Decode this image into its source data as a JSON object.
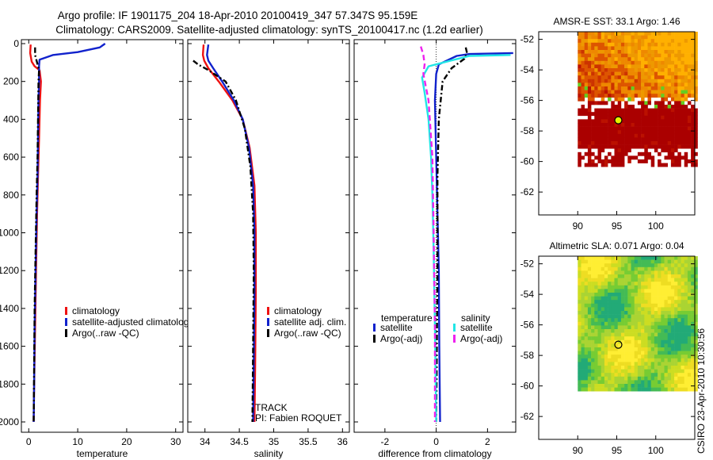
{
  "title": {
    "line1": "Argo profile: IF 1901175_204 18-Apr-2010 20100419_347 57.347S 95.159E",
    "line2": "Climatology: CARS2009. Satellite-adjusted climatology: synTS_20100417.nc (1.2d earlier)"
  },
  "side_label": "CSIRO 23-Apr-2010 10:30:56",
  "colors": {
    "climatology": "#ee1111",
    "satellite": "#1122cc",
    "argo": "#000000",
    "sal_satellite": "#22e6e6",
    "sal_argo": "#ee22ee"
  },
  "chart_data": [
    {
      "id": "temperature",
      "type": "line",
      "xlabel": "temperature",
      "xlim": [
        -1.5,
        31.5
      ],
      "ylim": [
        0,
        2050
      ],
      "y_reversed": true,
      "xticks": [
        0,
        10,
        20,
        30
      ],
      "xtick_labels": [
        "0",
        "10",
        "20",
        "30"
      ],
      "yticks": [
        0,
        200,
        400,
        600,
        800,
        1000,
        1200,
        1400,
        1600,
        1800,
        2000
      ],
      "ytick_labels": [
        "0",
        "200",
        "400",
        "600",
        "800",
        "1000",
        "1200",
        "1400",
        "1600",
        "1800",
        "2000"
      ],
      "series": [
        {
          "name": "climatology",
          "color": "#ee1111",
          "style": "solid",
          "x": [
            0.4,
            0.3,
            0.6,
            1.2,
            2.2,
            2.5,
            2.3,
            2.1,
            1.9,
            1.7,
            1.5,
            1.3,
            1.1,
            1.0
          ],
          "y": [
            5,
            50,
            95,
            120,
            140,
            200,
            300,
            500,
            700,
            900,
            1200,
            1500,
            1800,
            2000
          ]
        },
        {
          "name": "satellite-adjusted climatology",
          "color": "#1122cc",
          "style": "solid",
          "x": [
            15.6,
            14.5,
            10.0,
            5.0,
            2.2,
            2.1,
            2.1,
            2.0,
            1.9,
            1.8,
            1.6,
            1.4,
            1.2,
            1.1,
            1.0
          ],
          "y": [
            0,
            20,
            45,
            60,
            85,
            120,
            200,
            300,
            500,
            700,
            900,
            1200,
            1500,
            1800,
            2000
          ]
        },
        {
          "name": "Argo(..raw -QC)",
          "color": "#000000",
          "style": "dashdot",
          "x": [
            1.3,
            1.3,
            1.7,
            2.1,
            2.0,
            1.9,
            1.8,
            1.6,
            1.4,
            1.2,
            1.1,
            1.0
          ],
          "y": [
            20,
            60,
            100,
            140,
            200,
            400,
            600,
            800,
            1100,
            1400,
            1700,
            2000
          ]
        }
      ],
      "legend": [
        {
          "label": "climatology",
          "color": "#ee1111"
        },
        {
          "label": "satellite-adjusted climatolog",
          "color": "#1122cc"
        },
        {
          "label": "Argo(..raw -QC)",
          "color": "#000000"
        }
      ]
    },
    {
      "id": "salinity",
      "type": "line",
      "xlabel": "salinity",
      "xlim": [
        33.75,
        36.1
      ],
      "ylim": [
        0,
        2050
      ],
      "y_reversed": true,
      "xticks": [
        34,
        34.5,
        35,
        35.5,
        36
      ],
      "xtick_labels": [
        "34",
        "34.5",
        "35",
        "35.5",
        "36"
      ],
      "yticks": [
        0,
        200,
        400,
        600,
        800,
        1000,
        1200,
        1400,
        1600,
        1800,
        2000
      ],
      "series": [
        {
          "name": "climatology",
          "color": "#ee1111",
          "style": "solid",
          "x": [
            33.98,
            33.97,
            33.99,
            34.05,
            34.2,
            34.4,
            34.55,
            34.65,
            34.72,
            34.74,
            34.74,
            34.73,
            34.72
          ],
          "y": [
            5,
            60,
            90,
            130,
            200,
            300,
            400,
            550,
            750,
            1000,
            1300,
            1700,
            2000
          ]
        },
        {
          "name": "satellite adj. clim.",
          "color": "#1122cc",
          "style": "solid",
          "x": [
            34.05,
            34.03,
            34.05,
            34.12,
            34.25,
            34.42,
            34.55,
            34.64,
            34.7,
            34.72,
            34.72,
            34.71,
            34.7
          ],
          "y": [
            5,
            60,
            90,
            130,
            200,
            300,
            400,
            550,
            750,
            1000,
            1300,
            1700,
            2000
          ]
        },
        {
          "name": "Argo(..raw -QC)",
          "color": "#000000",
          "style": "dashdot",
          "x": [
            33.83,
            33.9,
            34.05,
            34.3,
            34.45,
            34.58,
            34.66,
            34.7,
            34.71,
            34.7,
            34.69
          ],
          "y": [
            90,
            110,
            140,
            200,
            300,
            450,
            650,
            900,
            1200,
            1600,
            2000
          ]
        }
      ],
      "legend": [
        {
          "label": "climatology",
          "color": "#ee1111"
        },
        {
          "label": "satellite adj. clim.",
          "color": "#1122cc"
        },
        {
          "label": "Argo(..raw -QC)",
          "color": "#000000"
        }
      ],
      "annotations": [
        "TRACK",
        "PI: Fabien ROQUET"
      ]
    },
    {
      "id": "difference",
      "type": "line",
      "xlabel": "difference from climatology",
      "xlim": [
        -3.2,
        3.1
      ],
      "ylim": [
        0,
        2050
      ],
      "y_reversed": true,
      "xticks": [
        -2,
        0,
        2
      ],
      "xtick_labels": [
        "-2",
        "0",
        "2"
      ],
      "yticks": [
        0,
        200,
        400,
        600,
        800,
        1000,
        1200,
        1400,
        1600,
        1800,
        2000
      ],
      "zero_line": true,
      "series": [
        {
          "name": "temperature satellite",
          "color": "#1122cc",
          "style": "solid",
          "x": [
            3.0,
            1.3,
            0.8,
            0.1,
            0.0,
            -0.05,
            0.0,
            0.05,
            0.1,
            0.12,
            0.15
          ],
          "y": [
            50,
            55,
            65,
            110,
            160,
            300,
            600,
            900,
            1200,
            1600,
            2000
          ]
        },
        {
          "name": "temperature Argo(-adj)",
          "color": "#000000",
          "style": "dashdot",
          "x": [
            1.15,
            1.2,
            1.1,
            0.6,
            0.25,
            0.1,
            0.05,
            0.05,
            0.0
          ],
          "y": [
            20,
            50,
            80,
            130,
            200,
            400,
            700,
            1200,
            2000
          ]
        },
        {
          "name": "salinity satellite",
          "color": "#22e6e6",
          "style": "solid",
          "x": [
            2.9,
            1.3,
            0.7,
            -0.3,
            -0.55,
            -0.45,
            -0.3,
            -0.2,
            -0.15,
            -0.1,
            -0.05,
            0.0
          ],
          "y": [
            60,
            65,
            85,
            120,
            180,
            260,
            400,
            600,
            800,
            1100,
            1500,
            2000
          ]
        },
        {
          "name": "salinity Argo(-adj)",
          "color": "#ee22ee",
          "style": "dashed",
          "x": [
            -0.6,
            -0.5,
            -0.45,
            -0.5,
            -0.3,
            -0.15,
            -0.1,
            -0.05,
            -0.05
          ],
          "y": [
            15,
            60,
            110,
            160,
            300,
            600,
            1000,
            1500,
            2000
          ]
        }
      ],
      "legend_groups": [
        {
          "title": "temperature",
          "items": [
            {
              "label": "satellite",
              "color": "#1122cc"
            },
            {
              "label": "Argo(-adj)",
              "color": "#000000"
            }
          ]
        },
        {
          "title": "salinity",
          "items": [
            {
              "label": "satellite",
              "color": "#22e6e6"
            },
            {
              "label": "Argo(-adj)",
              "color": "#ee22ee"
            }
          ]
        }
      ]
    },
    {
      "id": "sst_map",
      "type": "heatmap",
      "title": "AMSR-E SST: 33.1 Argo: 1.46",
      "xlim": [
        85,
        105
      ],
      "ylim": [
        -63.5,
        -51.5
      ],
      "xticks": [
        90,
        95,
        100
      ],
      "xtick_labels": [
        "90",
        "95",
        "100"
      ],
      "yticks": [
        -52,
        -54,
        -56,
        -58,
        -60,
        -62
      ],
      "ytick_labels": [
        "-52",
        "-54",
        "-56",
        "-58",
        "-60",
        "-62"
      ],
      "data_extent": {
        "x": [
          90,
          105
        ],
        "y": [
          -60.2,
          -51.5
        ]
      },
      "marker": {
        "x": 95.2,
        "y": -57.3,
        "fill": "#e6f000"
      },
      "palette": [
        "#aa0000",
        "#bb1100",
        "#cc3300",
        "#dd5500",
        "#ee8800",
        "#ee9900",
        "#ffb000",
        "#66cc22"
      ]
    },
    {
      "id": "sla_map",
      "type": "heatmap",
      "title": "Altimetric SLA: 0.071 Argo: 0.04",
      "xlim": [
        85,
        105
      ],
      "ylim": [
        -63.5,
        -51.5
      ],
      "xticks": [
        90,
        95,
        100
      ],
      "xtick_labels": [
        "90",
        "95",
        "100"
      ],
      "yticks": [
        -52,
        -54,
        -56,
        -58,
        -60,
        -62
      ],
      "ytick_labels": [
        "-52",
        "-54",
        "-56",
        "-58",
        "-60",
        "-62"
      ],
      "data_extent": {
        "x": [
          90,
          105
        ],
        "y": [
          -60.2,
          -51.5
        ]
      },
      "marker": {
        "x": 95.2,
        "y": -57.3,
        "fill": "none"
      },
      "palette": [
        "#22aa77",
        "#44bb55",
        "#77cc33",
        "#aad433",
        "#ccdd22",
        "#eedd22",
        "#ffee33"
      ]
    }
  ]
}
